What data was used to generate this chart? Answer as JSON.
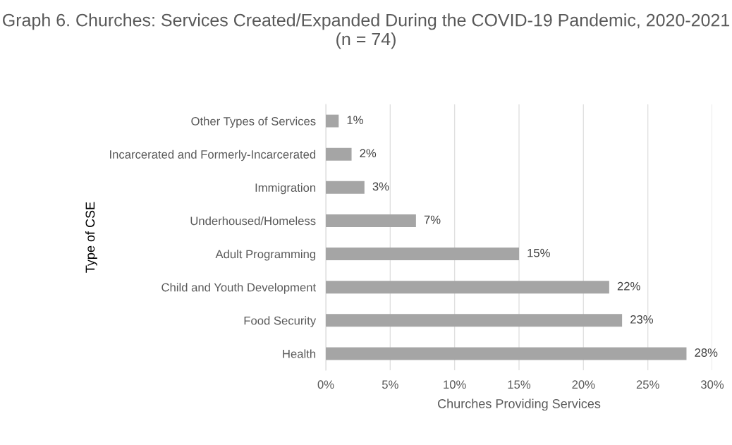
{
  "chart_data": {
    "type": "bar",
    "orientation": "horizontal",
    "title": "Graph 6. Churches: Services Created/Expanded During the COVID-19 Pandemic, 2020-2021 (n = 74)",
    "xlabel": "Churches Providing Services",
    "ylabel": "Type of CSE",
    "categories": [
      "Other Types of Services",
      "Incarcerated and Formerly-Incarcerated",
      "Immigration",
      "Underhoused/Homeless",
      "Adult Programming",
      "Child and Youth Development",
      "Food Security",
      "Health"
    ],
    "values": [
      1,
      2,
      3,
      7,
      15,
      22,
      23,
      28
    ],
    "value_labels": [
      "1%",
      "2%",
      "3%",
      "7%",
      "15%",
      "22%",
      "23%",
      "28%"
    ],
    "color": "#a5a5a5",
    "xlim": [
      0,
      30
    ],
    "xticks": [
      {
        "value": 0,
        "label": "0%"
      },
      {
        "value": 5,
        "label": "5%"
      },
      {
        "value": 10,
        "label": "10%"
      },
      {
        "value": 15,
        "label": "15%"
      },
      {
        "value": 20,
        "label": "20%"
      },
      {
        "value": 25,
        "label": "25%"
      },
      {
        "value": 30,
        "label": "30%"
      }
    ],
    "grid": "x"
  }
}
